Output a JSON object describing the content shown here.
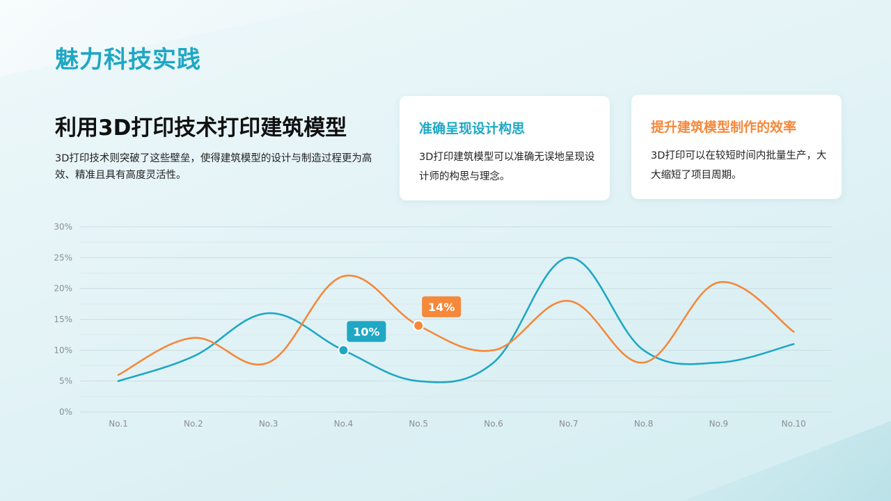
{
  "title": "魅力科技实践",
  "heading": "利用3D打印技术打印建筑模型",
  "description": "3D打印技术则突破了这些壁垒，使得建筑模型的设计与制造过程更为高效、精准且具有高度灵活性。",
  "cards": [
    {
      "title": "准确呈现设计构思",
      "text": "3D打印建筑模型可以准确无误地呈现设计师的构思与理念。",
      "accent": "#1fa7c4"
    },
    {
      "title": "提升建筑模型制作的效率",
      "text": "3D打印可以在较短时间内批量生产，大大缩短了项目周期。",
      "accent": "#f5883a"
    }
  ],
  "chart_data": {
    "type": "line",
    "categories": [
      "No.1",
      "No.2",
      "No.3",
      "No.4",
      "No.5",
      "No.6",
      "No.7",
      "No.8",
      "No.9",
      "No.10"
    ],
    "y_ticks": [
      "0%",
      "5%",
      "10%",
      "15%",
      "20%",
      "25%",
      "30%"
    ],
    "ylim": [
      0,
      30
    ],
    "grid": true,
    "series": [
      {
        "color": "#1fa7c4",
        "values": [
          5,
          9,
          16,
          10,
          5,
          8,
          25,
          10,
          8,
          11
        ]
      },
      {
        "color": "#f5883a",
        "values": [
          6,
          12,
          8,
          22,
          14,
          10,
          18,
          8,
          21,
          13
        ]
      }
    ],
    "annotations": [
      {
        "series": 0,
        "index": 3,
        "label": "10%"
      },
      {
        "series": 1,
        "index": 4,
        "label": "14%"
      }
    ]
  }
}
